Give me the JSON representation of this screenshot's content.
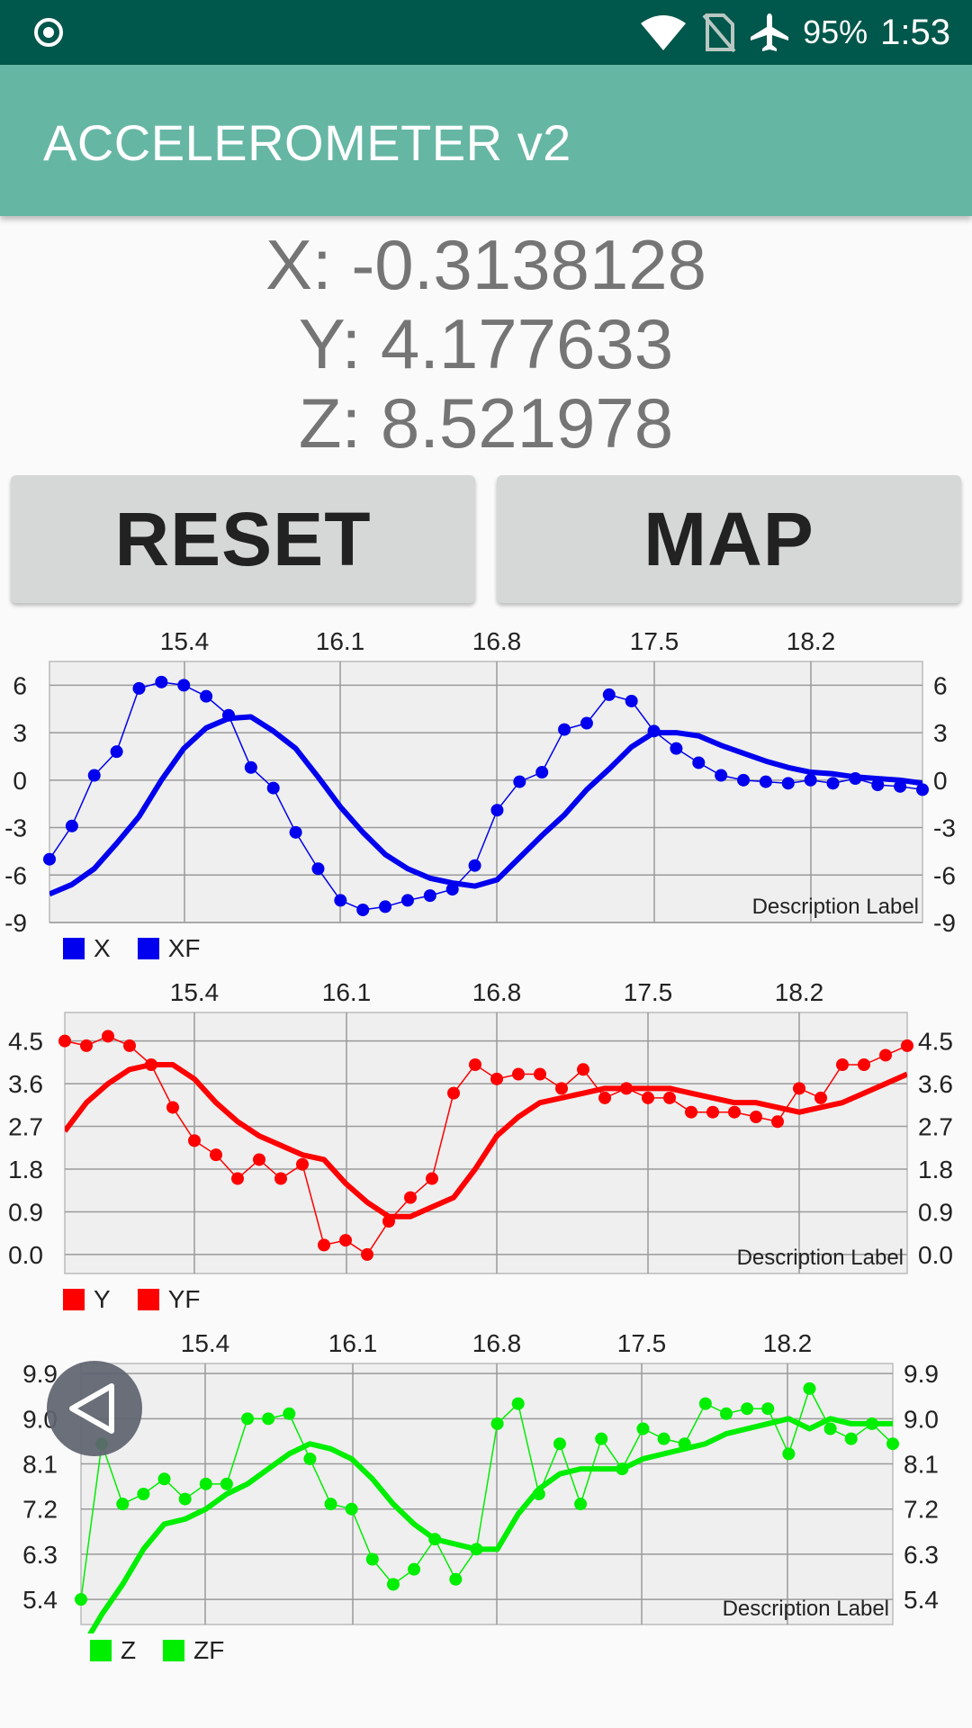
{
  "status_bar": {
    "battery": "95%",
    "time": "1:53",
    "icons": [
      "record-icon",
      "wifi-icon",
      "no-sim-icon",
      "airplane-icon"
    ]
  },
  "app": {
    "title": "ACCELEROMETER v2"
  },
  "readouts": {
    "x": "X: -0.3138128",
    "y": "Y: 4.177633",
    "z": "Z: 8.521978"
  },
  "buttons": {
    "reset": "RESET",
    "map": "MAP"
  },
  "colors": {
    "status_bar": "#00574b",
    "app_bar": "#66b6a4",
    "x": "#0000ee",
    "y": "#ff0000",
    "z": "#00ee00"
  },
  "chart_data": [
    {
      "type": "line",
      "x_ticks": [
        "15.4",
        "16.1",
        "16.8",
        "17.5",
        "18.2"
      ],
      "y_ticks": [
        "6",
        "3",
        "0",
        "-3",
        "-6",
        "-9"
      ],
      "ylim": [
        -9,
        7.5
      ],
      "xlim": [
        14.8,
        18.7
      ],
      "description": "Description Label",
      "legend": [
        "X",
        "XF"
      ],
      "series": [
        {
          "name": "X",
          "x": [
            14.8,
            14.9,
            15.0,
            15.1,
            15.2,
            15.3,
            15.4,
            15.5,
            15.6,
            15.7,
            15.8,
            15.9,
            16.0,
            16.1,
            16.2,
            16.3,
            16.4,
            16.5,
            16.6,
            16.7,
            16.8,
            16.9,
            17.0,
            17.1,
            17.2,
            17.3,
            17.4,
            17.5,
            17.6,
            17.7,
            17.8,
            17.9,
            18.0,
            18.1,
            18.2,
            18.3,
            18.4,
            18.5,
            18.6,
            18.7
          ],
          "values": [
            -5.0,
            -2.9,
            0.3,
            1.8,
            5.8,
            6.2,
            6.0,
            5.3,
            4.1,
            0.8,
            -0.5,
            -3.3,
            -5.6,
            -7.6,
            -8.2,
            -8.0,
            -7.6,
            -7.3,
            -6.9,
            -5.4,
            -1.9,
            -0.1,
            0.5,
            3.2,
            3.6,
            5.4,
            5.0,
            3.1,
            2.0,
            1.1,
            0.3,
            0.0,
            -0.1,
            -0.2,
            0.0,
            -0.2,
            0.1,
            -0.3,
            -0.4,
            -0.6
          ]
        },
        {
          "name": "XF",
          "x": [
            14.8,
            14.9,
            15.0,
            15.1,
            15.2,
            15.3,
            15.4,
            15.5,
            15.6,
            15.7,
            15.8,
            15.9,
            16.0,
            16.1,
            16.2,
            16.3,
            16.4,
            16.5,
            16.6,
            16.7,
            16.8,
            16.9,
            17.0,
            17.1,
            17.2,
            17.3,
            17.4,
            17.5,
            17.6,
            17.7,
            17.8,
            17.9,
            18.0,
            18.1,
            18.2,
            18.3,
            18.4,
            18.5,
            18.6,
            18.7
          ],
          "values": [
            -7.2,
            -6.6,
            -5.6,
            -4.0,
            -2.3,
            0.0,
            2.0,
            3.3,
            3.9,
            4.0,
            3.1,
            2.0,
            0.2,
            -1.7,
            -3.3,
            -4.7,
            -5.6,
            -6.2,
            -6.5,
            -6.7,
            -6.3,
            -4.9,
            -3.5,
            -2.2,
            -0.6,
            0.7,
            2.1,
            3.0,
            3.0,
            2.8,
            2.2,
            1.7,
            1.2,
            0.8,
            0.5,
            0.4,
            0.2,
            0.1,
            0.0,
            -0.2
          ]
        }
      ]
    },
    {
      "type": "line",
      "x_ticks": [
        "15.4",
        "16.1",
        "16.8",
        "17.5",
        "18.2"
      ],
      "y_ticks": [
        "4.5",
        "3.6",
        "2.7",
        "1.8",
        "0.9",
        "0.0"
      ],
      "ylim": [
        -0.4,
        5.1
      ],
      "xlim": [
        14.8,
        18.7
      ],
      "description": "Description Label",
      "legend": [
        "Y",
        "YF"
      ],
      "series": [
        {
          "name": "Y",
          "x": [
            14.8,
            14.9,
            15.0,
            15.1,
            15.2,
            15.3,
            15.4,
            15.5,
            15.6,
            15.7,
            15.8,
            15.9,
            16.0,
            16.1,
            16.2,
            16.3,
            16.4,
            16.5,
            16.6,
            16.7,
            16.8,
            16.9,
            17.0,
            17.1,
            17.2,
            17.3,
            17.4,
            17.5,
            17.6,
            17.7,
            17.8,
            17.9,
            18.0,
            18.1,
            18.2,
            18.3,
            18.4,
            18.5,
            18.6,
            18.7
          ],
          "values": [
            4.5,
            4.4,
            4.6,
            4.4,
            4.0,
            3.1,
            2.4,
            2.1,
            1.6,
            2.0,
            1.6,
            1.9,
            0.2,
            0.3,
            0.0,
            0.7,
            1.2,
            1.6,
            3.4,
            4.0,
            3.7,
            3.8,
            3.8,
            3.5,
            3.9,
            3.3,
            3.5,
            3.3,
            3.3,
            3.0,
            3.0,
            3.0,
            2.9,
            2.8,
            3.5,
            3.3,
            4.0,
            4.0,
            4.2,
            4.4
          ]
        },
        {
          "name": "YF",
          "x": [
            14.8,
            14.9,
            15.0,
            15.1,
            15.2,
            15.3,
            15.4,
            15.5,
            15.6,
            15.7,
            15.8,
            15.9,
            16.0,
            16.1,
            16.2,
            16.3,
            16.4,
            16.5,
            16.6,
            16.7,
            16.8,
            16.9,
            17.0,
            17.1,
            17.2,
            17.3,
            17.4,
            17.5,
            17.6,
            17.7,
            17.8,
            17.9,
            18.0,
            18.1,
            18.2,
            18.3,
            18.4,
            18.5,
            18.6,
            18.7
          ],
          "values": [
            2.6,
            3.2,
            3.6,
            3.9,
            4.0,
            4.0,
            3.7,
            3.2,
            2.8,
            2.5,
            2.3,
            2.1,
            2.0,
            1.5,
            1.1,
            0.8,
            0.8,
            1.0,
            1.2,
            1.8,
            2.5,
            2.9,
            3.2,
            3.3,
            3.4,
            3.5,
            3.5,
            3.5,
            3.5,
            3.4,
            3.3,
            3.2,
            3.2,
            3.1,
            3.0,
            3.1,
            3.2,
            3.4,
            3.6,
            3.8
          ]
        }
      ]
    },
    {
      "type": "line",
      "x_ticks": [
        "15.4",
        "16.1",
        "16.8",
        "17.5",
        "18.2"
      ],
      "y_ticks": [
        "9.9",
        "9.0",
        "8.1",
        "7.2",
        "6.3",
        "5.4"
      ],
      "ylim": [
        4.9,
        10.1
      ],
      "xlim": [
        14.8,
        18.7
      ],
      "description": "Description Label",
      "legend": [
        "Z",
        "ZF"
      ],
      "series": [
        {
          "name": "Z",
          "x": [
            14.8,
            14.9,
            15.0,
            15.1,
            15.2,
            15.3,
            15.4,
            15.5,
            15.6,
            15.7,
            15.8,
            15.9,
            16.0,
            16.1,
            16.2,
            16.3,
            16.4,
            16.5,
            16.6,
            16.7,
            16.8,
            16.9,
            17.0,
            17.1,
            17.2,
            17.3,
            17.4,
            17.5,
            17.6,
            17.7,
            17.8,
            17.9,
            18.0,
            18.1,
            18.2,
            18.3,
            18.4,
            18.5,
            18.6,
            18.7
          ],
          "values": [
            5.4,
            8.5,
            7.3,
            7.5,
            7.8,
            7.4,
            7.7,
            7.7,
            9.0,
            9.0,
            9.1,
            8.2,
            7.3,
            7.2,
            6.2,
            5.7,
            6.0,
            6.6,
            5.8,
            6.4,
            8.9,
            9.3,
            7.5,
            8.5,
            7.3,
            8.6,
            8.0,
            8.8,
            8.6,
            8.5,
            9.3,
            9.1,
            9.2,
            9.2,
            8.3,
            9.6,
            8.8,
            8.6,
            8.9,
            8.5
          ]
        },
        {
          "name": "ZF",
          "x": [
            14.8,
            14.9,
            15.0,
            15.1,
            15.2,
            15.3,
            15.4,
            15.5,
            15.6,
            15.7,
            15.8,
            15.9,
            16.0,
            16.1,
            16.2,
            16.3,
            16.4,
            16.5,
            16.6,
            16.7,
            16.8,
            16.9,
            17.0,
            17.1,
            17.2,
            17.3,
            17.4,
            17.5,
            17.6,
            17.7,
            17.8,
            17.9,
            18.0,
            18.1,
            18.2,
            18.3,
            18.4,
            18.5,
            18.6,
            18.7
          ],
          "values": [
            4.4,
            5.1,
            5.7,
            6.4,
            6.9,
            7.0,
            7.2,
            7.5,
            7.7,
            8.0,
            8.3,
            8.5,
            8.4,
            8.2,
            7.8,
            7.3,
            6.9,
            6.6,
            6.5,
            6.4,
            6.4,
            7.1,
            7.6,
            7.9,
            8.0,
            8.0,
            8.0,
            8.2,
            8.3,
            8.4,
            8.5,
            8.7,
            8.8,
            8.9,
            9.0,
            8.8,
            9.0,
            8.9,
            8.9,
            8.9
          ]
        }
      ]
    }
  ]
}
